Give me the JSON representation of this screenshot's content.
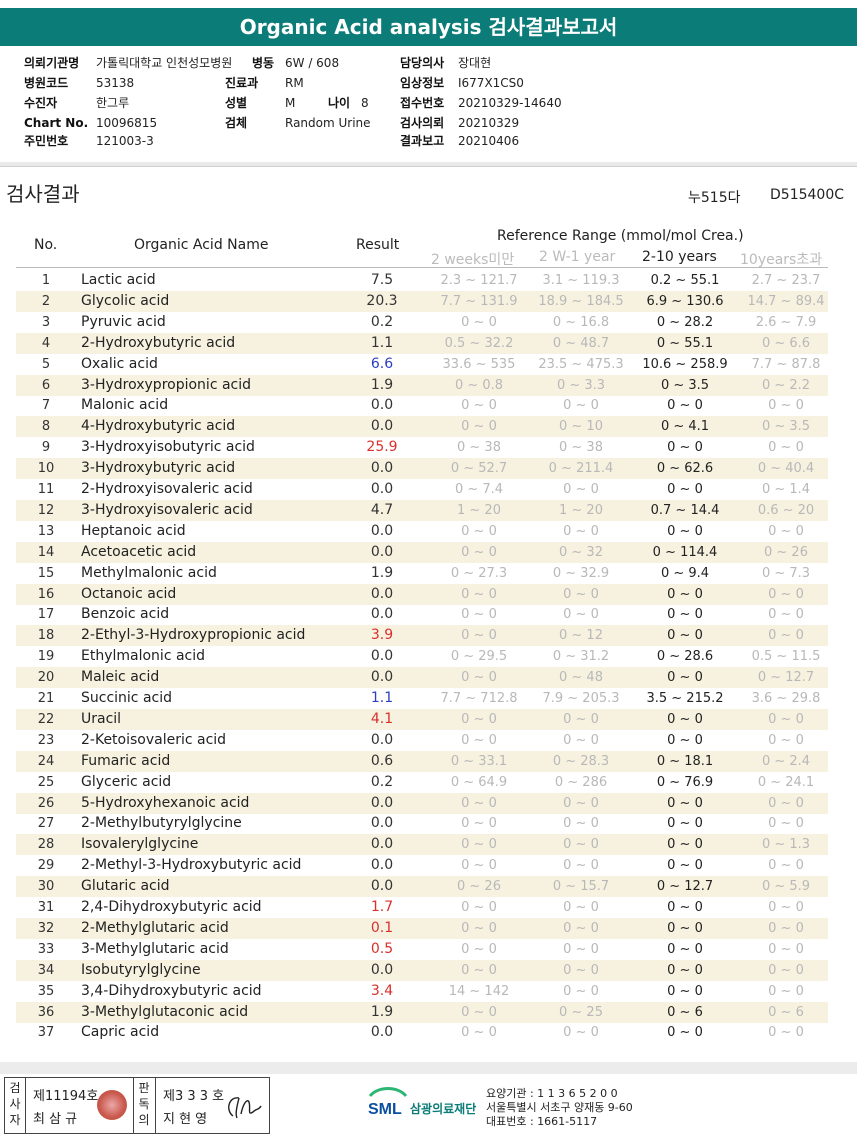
{
  "header": {
    "title": "Organic Acid analysis 검사결과보고서"
  },
  "info": {
    "institution_label": "의뢰기관명",
    "institution": "가톨릭대학교 인천성모병원",
    "ward_label": "병동",
    "ward": "6W / 608",
    "doctor_label": "담당의사",
    "doctor": "장대현",
    "hospital_code_label": "병원코드",
    "hospital_code": "53138",
    "dept_label": "진료과",
    "dept": "RM",
    "clinical_label": "임상정보",
    "clinical": "I677X1CS0",
    "patient_label": "수진자",
    "patient": "한그루",
    "sex_label": "성별",
    "sex": "M",
    "age_label": "나이",
    "age": "8",
    "accession_label": "접수번호",
    "accession": "20210329-14640",
    "chart_label": "Chart No.",
    "chart": "10096815",
    "specimen_label": "검체",
    "specimen": "Random Urine",
    "request_label": "검사의뢰",
    "request_date": "20210329",
    "rrn_label": "주민번호",
    "rrn": "121003-3",
    "report_label": "결과보고",
    "report_date": "20210406"
  },
  "section": {
    "title": "검사결과",
    "code1": "누515다",
    "code2": "D515400C"
  },
  "table": {
    "col_no": "No.",
    "col_name": "Organic Acid Name",
    "col_result": "Result",
    "col_ref": "Reference Range (mmol/mol Crea.)",
    "ref_groups": [
      "2 weeks미만",
      "2 W-1 year",
      "2-10 years",
      "10years초과"
    ],
    "rows": [
      {
        "no": "1",
        "name": "Lactic acid",
        "result": "7.5",
        "flag": "",
        "r1": "2.3 ~ 121.7",
        "r2": "3.1 ~ 119.3",
        "r3": "0.2 ~ 55.1",
        "r4": "2.7 ~ 23.7"
      },
      {
        "no": "2",
        "name": "Glycolic acid",
        "result": "20.3",
        "flag": "",
        "r1": "7.7 ~ 131.9",
        "r2": "18.9 ~ 184.5",
        "r3": "6.9 ~ 130.6",
        "r4": "14.7 ~ 89.4"
      },
      {
        "no": "3",
        "name": "Pyruvic acid",
        "result": "0.2",
        "flag": "",
        "r1": "0 ~ 0",
        "r2": "0 ~ 16.8",
        "r3": "0 ~ 28.2",
        "r4": "2.6 ~ 7.9"
      },
      {
        "no": "4",
        "name": "2-Hydroxybutyric acid",
        "result": "1.1",
        "flag": "",
        "r1": "0.5 ~ 32.2",
        "r2": "0 ~ 48.7",
        "r3": "0 ~ 55.1",
        "r4": "0 ~ 6.6"
      },
      {
        "no": "5",
        "name": "Oxalic acid",
        "result": "6.6",
        "flag": "low",
        "r1": "33.6 ~ 535",
        "r2": "23.5 ~ 475.3",
        "r3": "10.6 ~ 258.9",
        "r4": "7.7 ~ 87.8"
      },
      {
        "no": "6",
        "name": "3-Hydroxypropionic acid",
        "result": "1.9",
        "flag": "",
        "r1": "0 ~ 0.8",
        "r2": "0 ~ 3.3",
        "r3": "0 ~ 3.5",
        "r4": "0 ~ 2.2"
      },
      {
        "no": "7",
        "name": "Malonic acid",
        "result": "0.0",
        "flag": "",
        "r1": "0 ~ 0",
        "r2": "0 ~ 0",
        "r3": "0 ~ 0",
        "r4": "0 ~ 0"
      },
      {
        "no": "8",
        "name": "4-Hydroxybutyric acid",
        "result": "0.0",
        "flag": "",
        "r1": "0 ~ 0",
        "r2": "0 ~ 10",
        "r3": "0 ~ 4.1",
        "r4": "0 ~ 3.5"
      },
      {
        "no": "9",
        "name": "3-Hydroxyisobutyric acid",
        "result": "25.9",
        "flag": "high",
        "r1": "0 ~ 38",
        "r2": "0 ~ 38",
        "r3": "0 ~ 0",
        "r4": "0 ~ 0"
      },
      {
        "no": "10",
        "name": "3-Hydroxybutyric acid",
        "result": "0.0",
        "flag": "",
        "r1": "0 ~ 52.7",
        "r2": "0 ~ 211.4",
        "r3": "0 ~ 62.6",
        "r4": "0 ~ 40.4"
      },
      {
        "no": "11",
        "name": "2-Hydroxyisovaleric acid",
        "result": "0.0",
        "flag": "",
        "r1": "0 ~ 7.4",
        "r2": "0 ~ 0",
        "r3": "0 ~ 0",
        "r4": "0 ~ 1.4"
      },
      {
        "no": "12",
        "name": "3-Hydroxyisovaleric acid",
        "result": "4.7",
        "flag": "",
        "r1": "1 ~ 20",
        "r2": "1 ~ 20",
        "r3": "0.7 ~ 14.4",
        "r4": "0.6 ~ 20"
      },
      {
        "no": "13",
        "name": "Heptanoic acid",
        "result": "0.0",
        "flag": "",
        "r1": "0 ~ 0",
        "r2": "0 ~ 0",
        "r3": "0 ~ 0",
        "r4": "0 ~ 0"
      },
      {
        "no": "14",
        "name": "Acetoacetic acid",
        "result": "0.0",
        "flag": "",
        "r1": "0 ~ 0",
        "r2": "0 ~ 32",
        "r3": "0 ~ 114.4",
        "r4": "0 ~ 26"
      },
      {
        "no": "15",
        "name": "Methylmalonic acid",
        "result": "1.9",
        "flag": "",
        "r1": "0 ~ 27.3",
        "r2": "0 ~ 32.9",
        "r3": "0 ~ 9.4",
        "r4": "0 ~ 7.3"
      },
      {
        "no": "16",
        "name": "Octanoic acid",
        "result": "0.0",
        "flag": "",
        "r1": "0 ~ 0",
        "r2": "0 ~ 0",
        "r3": "0 ~ 0",
        "r4": "0 ~ 0"
      },
      {
        "no": "17",
        "name": "Benzoic acid",
        "result": "0.0",
        "flag": "",
        "r1": "0 ~ 0",
        "r2": "0 ~ 0",
        "r3": "0 ~ 0",
        "r4": "0 ~ 0"
      },
      {
        "no": "18",
        "name": "2-Ethyl-3-Hydroxypropionic acid",
        "result": "3.9",
        "flag": "high",
        "r1": "0 ~ 0",
        "r2": "0 ~ 12",
        "r3": "0 ~ 0",
        "r4": "0 ~ 0"
      },
      {
        "no": "19",
        "name": "Ethylmalonic acid",
        "result": "0.0",
        "flag": "",
        "r1": "0 ~ 29.5",
        "r2": "0 ~ 31.2",
        "r3": "0 ~ 28.6",
        "r4": "0.5 ~ 11.5"
      },
      {
        "no": "20",
        "name": "Maleic acid",
        "result": "0.0",
        "flag": "",
        "r1": "0 ~ 0",
        "r2": "0 ~ 48",
        "r3": "0 ~ 0",
        "r4": "0 ~ 12.7"
      },
      {
        "no": "21",
        "name": "Succinic acid",
        "result": "1.1",
        "flag": "low",
        "r1": "7.7 ~ 712.8",
        "r2": "7.9 ~ 205.3",
        "r3": "3.5 ~ 215.2",
        "r4": "3.6 ~ 29.8"
      },
      {
        "no": "22",
        "name": "Uracil",
        "result": "4.1",
        "flag": "high",
        "r1": "0 ~ 0",
        "r2": "0 ~ 0",
        "r3": "0 ~ 0",
        "r4": "0 ~ 0"
      },
      {
        "no": "23",
        "name": "2-Ketoisovaleric acid",
        "result": "0.0",
        "flag": "",
        "r1": "0 ~ 0",
        "r2": "0 ~ 0",
        "r3": "0 ~ 0",
        "r4": "0 ~ 0"
      },
      {
        "no": "24",
        "name": "Fumaric acid",
        "result": "0.6",
        "flag": "",
        "r1": "0 ~ 33.1",
        "r2": "0 ~ 28.3",
        "r3": "0 ~ 18.1",
        "r4": "0 ~ 2.4"
      },
      {
        "no": "25",
        "name": "Glyceric acid",
        "result": "0.2",
        "flag": "",
        "r1": "0 ~ 64.9",
        "r2": "0 ~ 286",
        "r3": "0 ~ 76.9",
        "r4": "0 ~ 24.1"
      },
      {
        "no": "26",
        "name": "5-Hydroxyhexanoic acid",
        "result": "0.0",
        "flag": "",
        "r1": "0 ~ 0",
        "r2": "0 ~ 0",
        "r3": "0 ~ 0",
        "r4": "0 ~ 0"
      },
      {
        "no": "27",
        "name": "2-Methylbutyrylglycine",
        "result": "0.0",
        "flag": "",
        "r1": "0 ~ 0",
        "r2": "0 ~ 0",
        "r3": "0 ~ 0",
        "r4": "0 ~ 0"
      },
      {
        "no": "28",
        "name": "Isovalerylglycine",
        "result": "0.0",
        "flag": "",
        "r1": "0 ~ 0",
        "r2": "0 ~ 0",
        "r3": "0 ~ 0",
        "r4": "0 ~ 1.3"
      },
      {
        "no": "29",
        "name": "2-Methyl-3-Hydroxybutyric acid",
        "result": "0.0",
        "flag": "",
        "r1": "0 ~ 0",
        "r2": "0 ~ 0",
        "r3": "0 ~ 0",
        "r4": "0 ~ 0"
      },
      {
        "no": "30",
        "name": "Glutaric acid",
        "result": "0.0",
        "flag": "",
        "r1": "0 ~ 26",
        "r2": "0 ~ 15.7",
        "r3": "0 ~ 12.7",
        "r4": "0 ~ 5.9"
      },
      {
        "no": "31",
        "name": "2,4-Dihydroxybutyric acid",
        "result": "1.7",
        "flag": "high",
        "r1": "0 ~ 0",
        "r2": "0 ~ 0",
        "r3": "0 ~ 0",
        "r4": "0 ~ 0"
      },
      {
        "no": "32",
        "name": "2-Methylglutaric acid",
        "result": "0.1",
        "flag": "high",
        "r1": "0 ~ 0",
        "r2": "0 ~ 0",
        "r3": "0 ~ 0",
        "r4": "0 ~ 0"
      },
      {
        "no": "33",
        "name": "3-Methylglutaric acid",
        "result": "0.5",
        "flag": "high",
        "r1": "0 ~ 0",
        "r2": "0 ~ 0",
        "r3": "0 ~ 0",
        "r4": "0 ~ 0"
      },
      {
        "no": "34",
        "name": "Isobutyrylglycine",
        "result": "0.0",
        "flag": "",
        "r1": "0 ~ 0",
        "r2": "0 ~ 0",
        "r3": "0 ~ 0",
        "r4": "0 ~ 0"
      },
      {
        "no": "35",
        "name": "3,4-Dihydroxybutyric acid",
        "result": "3.4",
        "flag": "high",
        "r1": "14 ~ 142",
        "r2": "0 ~ 0",
        "r3": "0 ~ 0",
        "r4": "0 ~ 0"
      },
      {
        "no": "36",
        "name": "3-Methylglutaconic acid",
        "result": "1.9",
        "flag": "",
        "r1": "0 ~ 0",
        "r2": "0 ~ 25",
        "r3": "0 ~ 6",
        "r4": "0 ~ 6"
      },
      {
        "no": "37",
        "name": "Capric acid",
        "result": "0.0",
        "flag": "",
        "r1": "0 ~ 0",
        "r2": "0 ~ 0",
        "r3": "0 ~ 0",
        "r4": "0 ~ 0"
      }
    ]
  },
  "footer": {
    "tester_label": "검사자",
    "tester_id": "제11194호",
    "tester_name": "최 삼 규",
    "reviewer_label": "판독의",
    "reviewer_id": "제3 3 3 호",
    "reviewer_name": "지 현 영",
    "org_name": "삼광의료재단",
    "org_code": "요양기관 : 1 1 3 6 5 2 0 0",
    "org_address": "서울특별시 서초구 양재동 9-60",
    "org_phone": "대표번호 : 1661-5117"
  },
  "colors": {
    "banner": "#0b7c78",
    "odd_row": "#f7f2e0",
    "high": "#d9302c",
    "low": "#2b3fbf",
    "muted": "#b8b8b8"
  }
}
